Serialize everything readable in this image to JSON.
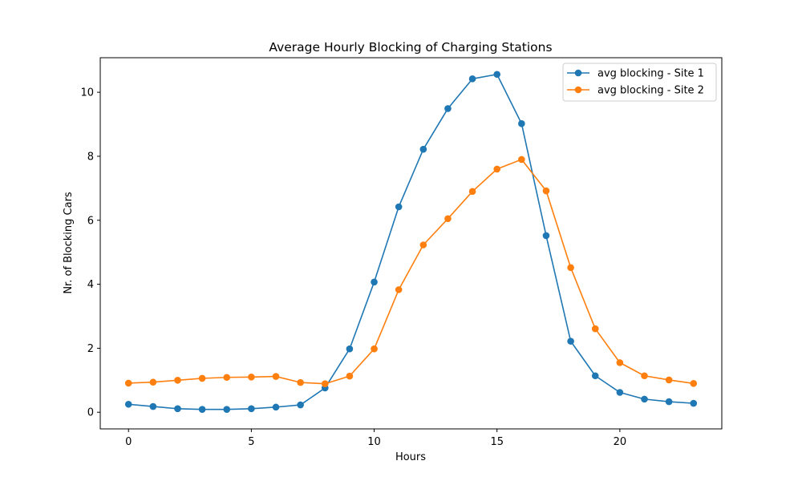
{
  "chart_data": {
    "type": "line",
    "title": "Average Hourly Blocking of Charging Stations",
    "xlabel": "Hours",
    "ylabel": "Nr. of Blocking Cars",
    "xlim": [
      -1.15,
      24.15
    ],
    "ylim": [
      -0.52,
      11.08
    ],
    "xticks": [
      0,
      5,
      10,
      15,
      20
    ],
    "yticks": [
      0,
      2,
      4,
      6,
      8,
      10
    ],
    "grid": false,
    "legend_position": "top-right",
    "x": [
      0,
      1,
      2,
      3,
      4,
      5,
      6,
      7,
      8,
      9,
      10,
      11,
      12,
      13,
      14,
      15,
      16,
      17,
      18,
      19,
      20,
      21,
      22,
      23
    ],
    "series": [
      {
        "name": "avg blocking - Site 1",
        "color": "#1f77b4",
        "values": [
          0.25,
          0.18,
          0.11,
          0.09,
          0.09,
          0.11,
          0.16,
          0.23,
          0.76,
          1.98,
          4.07,
          6.42,
          8.22,
          9.49,
          10.42,
          10.56,
          9.02,
          5.52,
          2.22,
          1.14,
          0.62,
          0.41,
          0.33,
          0.28
        ]
      },
      {
        "name": "avg blocking - Site 2",
        "color": "#ff7f0e",
        "values": [
          0.91,
          0.94,
          1.0,
          1.06,
          1.09,
          1.1,
          1.12,
          0.93,
          0.89,
          1.13,
          1.98,
          3.83,
          5.23,
          6.05,
          6.9,
          7.6,
          7.9,
          6.92,
          4.52,
          2.61,
          1.55,
          1.14,
          1.01,
          0.9
        ]
      }
    ]
  }
}
